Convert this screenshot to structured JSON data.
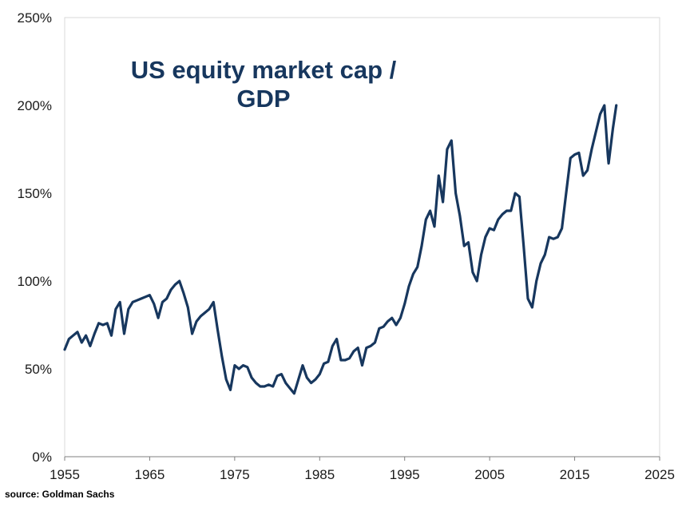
{
  "chart_data": {
    "type": "line",
    "title_line1": "US equity market cap /",
    "title_line2": "GDP",
    "source": "source: Goldman Sachs",
    "xlabel": "",
    "ylabel": "",
    "xlim": [
      1955,
      2025
    ],
    "ylim": [
      0,
      250
    ],
    "x_ticks": [
      "1955",
      "1965",
      "1975",
      "1985",
      "1995",
      "2005",
      "2015",
      "2025"
    ],
    "y_ticks": [
      "0%",
      "50%",
      "100%",
      "150%",
      "200%",
      "250%"
    ],
    "grid": false,
    "legend": "none",
    "line_color": "#17375e",
    "series": [
      {
        "x": [
          1955.0,
          1955.5,
          1956.0,
          1956.5,
          1957.0,
          1957.5,
          1958.0,
          1958.5,
          1959.0,
          1959.5,
          1960.0,
          1960.5,
          1961.0,
          1961.5,
          1962.0,
          1962.5,
          1963.0,
          1963.5,
          1964.0,
          1964.5,
          1965.0,
          1965.5,
          1966.0,
          1966.5,
          1967.0,
          1967.5,
          1968.0,
          1968.5,
          1969.0,
          1969.5,
          1970.0,
          1970.5,
          1971.0,
          1971.5,
          1972.0,
          1972.5,
          1973.0,
          1973.5,
          1974.0,
          1974.5,
          1975.0,
          1975.5,
          1976.0,
          1976.5,
          1977.0,
          1977.5,
          1978.0,
          1978.5,
          1979.0,
          1979.5,
          1980.0,
          1980.5,
          1981.0,
          1981.5,
          1982.0,
          1982.5,
          1983.0,
          1983.5,
          1984.0,
          1984.5,
          1985.0,
          1985.5,
          1986.0,
          1986.5,
          1987.0,
          1987.5,
          1988.0,
          1988.5,
          1989.0,
          1989.5,
          1990.0,
          1990.5,
          1991.0,
          1991.5,
          1992.0,
          1992.5,
          1993.0,
          1993.5,
          1994.0,
          1994.5,
          1995.0,
          1995.5,
          1996.0,
          1996.5,
          1997.0,
          1997.5,
          1998.0,
          1998.5,
          1999.0,
          1999.5,
          2000.0,
          2000.5,
          2001.0,
          2001.5,
          2002.0,
          2002.5,
          2003.0,
          2003.5,
          2004.0,
          2004.5,
          2005.0,
          2005.5,
          2006.0,
          2006.5,
          2007.0,
          2007.5,
          2008.0,
          2008.5,
          2009.0,
          2009.5,
          2010.0,
          2010.5,
          2011.0,
          2011.5,
          2012.0,
          2012.5,
          2013.0,
          2013.5,
          2014.0,
          2014.5,
          2015.0,
          2015.5,
          2016.0,
          2016.5,
          2017.0,
          2017.5,
          2018.0,
          2018.5,
          2018.9,
          2019.0,
          2019.5,
          2019.9
        ],
        "y": [
          61,
          67,
          69,
          71,
          65,
          69,
          63,
          70,
          76,
          75,
          76,
          69,
          84,
          88,
          70,
          84,
          88,
          89,
          90,
          91,
          92,
          87,
          79,
          88,
          90,
          95,
          98,
          100,
          93,
          85,
          70,
          77,
          80,
          82,
          84,
          88,
          72,
          57,
          44,
          38,
          52,
          50,
          52,
          51,
          45,
          42,
          40,
          40,
          41,
          40,
          46,
          47,
          42,
          39,
          36,
          44,
          52,
          45,
          42,
          44,
          47,
          53,
          54,
          63,
          67,
          55,
          55,
          56,
          60,
          62,
          52,
          62,
          63,
          65,
          73,
          74,
          77,
          79,
          75,
          79,
          87,
          97,
          104,
          108,
          120,
          135,
          140,
          131,
          160,
          145,
          175,
          180,
          150,
          137,
          120,
          122,
          105,
          100,
          115,
          125,
          130,
          129,
          135,
          138,
          140,
          140,
          150,
          148,
          120,
          90,
          85,
          100,
          110,
          115,
          125,
          124,
          125,
          130,
          150,
          170,
          172,
          173,
          160,
          163,
          175,
          185,
          195,
          200,
          172,
          167,
          187,
          200
        ]
      }
    ]
  }
}
